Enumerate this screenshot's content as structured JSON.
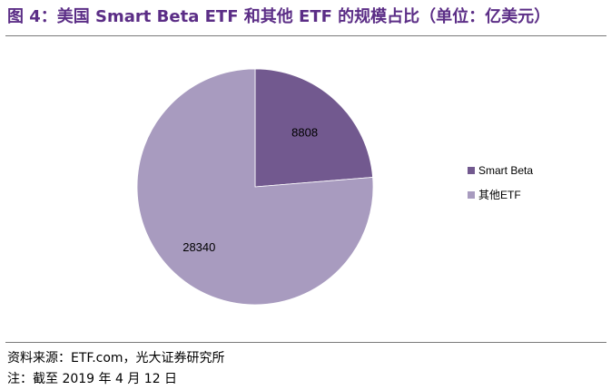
{
  "title": "图 4：美国 Smart Beta ETF 和其他 ETF 的规模占比（单位：亿美元）",
  "source": "资料来源：ETF.com，光大证券研究所",
  "note": "注：截至 2019 年 4 月 12 日",
  "colors": {
    "title": "#5b2d86",
    "smart_beta": "#72598f",
    "other": "#a89bbf"
  },
  "chart_data": {
    "type": "pie",
    "categories": [
      "Smart Beta",
      "其他ETF"
    ],
    "values": [
      8808,
      28340
    ],
    "legend_position": "right"
  }
}
